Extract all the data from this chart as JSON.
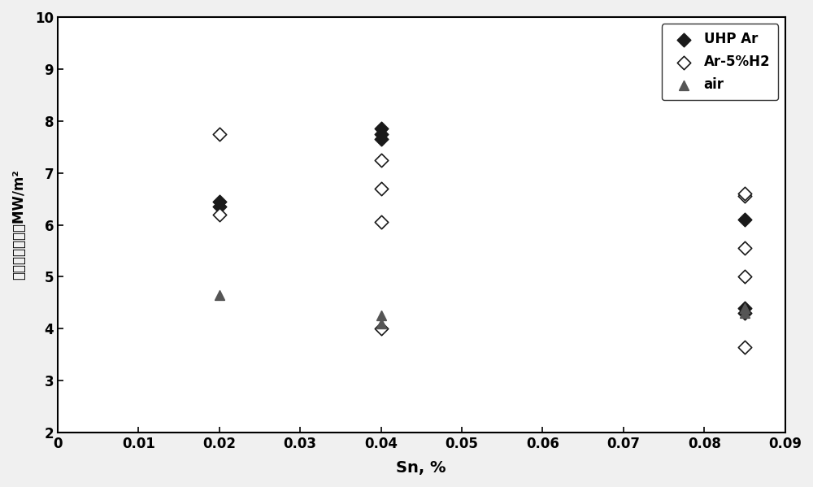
{
  "title": "",
  "xlabel": "Sn, %",
  "ylabel": "平均热流密度，MW/m²",
  "xlim": [
    0,
    0.09
  ],
  "ylim": [
    2,
    10
  ],
  "xticks": [
    0,
    0.01,
    0.02,
    0.03,
    0.04,
    0.05,
    0.06,
    0.07,
    0.08,
    0.09
  ],
  "yticks": [
    2,
    3,
    4,
    5,
    6,
    7,
    8,
    9,
    10
  ],
  "UHP_Ar": {
    "x": [
      0.02,
      0.02,
      0.04,
      0.04,
      0.04,
      0.085,
      0.085,
      0.085
    ],
    "y": [
      6.35,
      6.45,
      7.65,
      7.75,
      7.85,
      4.3,
      4.4,
      6.1
    ],
    "label": "UHP Ar",
    "marker": "D",
    "color": "#1a1a1a",
    "facecolor": "#1a1a1a",
    "size": 70
  },
  "Ar5H2": {
    "x": [
      0.02,
      0.02,
      0.04,
      0.04,
      0.04,
      0.04,
      0.085,
      0.085,
      0.085,
      0.085,
      0.085
    ],
    "y": [
      6.2,
      7.75,
      4.0,
      6.05,
      6.7,
      7.25,
      3.65,
      5.0,
      5.55,
      6.55,
      6.6
    ],
    "label": "Ar-5%H2",
    "marker": "D",
    "color": "#1a1a1a",
    "facecolor": "white",
    "size": 70
  },
  "air": {
    "x": [
      0.02,
      0.04,
      0.04,
      0.085,
      0.085
    ],
    "y": [
      4.65,
      4.1,
      4.25,
      4.3,
      4.4
    ],
    "label": "air",
    "marker": "^",
    "color": "#555555",
    "facecolor": "#555555",
    "size": 70
  },
  "legend_loc": "upper right",
  "bg_color": "#f0f0f0",
  "figsize": [
    10.0,
    5.99
  ],
  "dpi": 100
}
